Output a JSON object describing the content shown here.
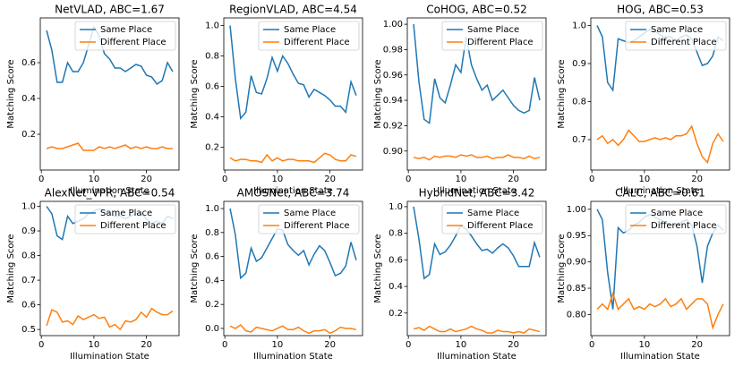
{
  "chart_data": [
    {
      "type": "line",
      "title": "NetVLAD, ABC=1.67",
      "xlabel": "Illumination State",
      "ylabel": "Matching Score",
      "x": [
        1,
        2,
        3,
        4,
        5,
        6,
        7,
        8,
        9,
        10,
        11,
        12,
        13,
        14,
        15,
        16,
        17,
        18,
        19,
        20,
        21,
        22,
        23,
        24,
        25
      ],
      "xlim": [
        -0.2,
        26.2
      ],
      "xticks": [
        0,
        10,
        20
      ],
      "ylim": [
        0,
        0.85
      ],
      "yticks": [
        0.2,
        0.4,
        0.6
      ],
      "legend": "upper right",
      "series": [
        {
          "name": "Same Place",
          "color": "#1f77b4",
          "values": [
            0.78,
            0.67,
            0.49,
            0.49,
            0.6,
            0.55,
            0.55,
            0.6,
            0.7,
            0.8,
            0.75,
            0.65,
            0.62,
            0.57,
            0.57,
            0.55,
            0.57,
            0.59,
            0.58,
            0.53,
            0.52,
            0.48,
            0.5,
            0.6,
            0.55
          ]
        },
        {
          "name": "Different Place",
          "color": "#ff7f0e",
          "values": [
            0.12,
            0.13,
            0.12,
            0.12,
            0.13,
            0.14,
            0.15,
            0.11,
            0.11,
            0.11,
            0.13,
            0.12,
            0.13,
            0.12,
            0.13,
            0.14,
            0.12,
            0.13,
            0.12,
            0.13,
            0.12,
            0.12,
            0.13,
            0.12,
            0.12
          ]
        }
      ]
    },
    {
      "type": "line",
      "title": "RegionVLAD, ABC=4.54",
      "xlabel": "Illumination State",
      "ylabel": "Matching Score",
      "x": [
        1,
        2,
        3,
        4,
        5,
        6,
        7,
        8,
        9,
        10,
        11,
        12,
        13,
        14,
        15,
        16,
        17,
        18,
        19,
        20,
        21,
        22,
        23,
        24,
        25
      ],
      "xlim": [
        -0.2,
        26.2
      ],
      "xticks": [
        0,
        10,
        20
      ],
      "ylim": [
        0.05,
        1.05
      ],
      "yticks": [
        0.2,
        0.4,
        0.6,
        0.8,
        {
          "value": 1,
          "label": "1.0"
        }
      ],
      "legend": "upper right",
      "series": [
        {
          "name": "Same Place",
          "color": "#1f77b4",
          "values": [
            1.0,
            0.65,
            0.39,
            0.43,
            0.67,
            0.56,
            0.55,
            0.65,
            0.79,
            0.7,
            0.8,
            0.75,
            0.68,
            0.62,
            0.61,
            0.53,
            0.58,
            0.56,
            0.54,
            0.51,
            0.47,
            0.47,
            0.43,
            0.63,
            0.54
          ]
        },
        {
          "name": "Different Place",
          "color": "#ff7f0e",
          "values": [
            0.13,
            0.11,
            0.12,
            0.12,
            0.11,
            0.11,
            0.1,
            0.15,
            0.11,
            0.13,
            0.11,
            0.12,
            0.12,
            0.11,
            0.11,
            0.11,
            0.1,
            0.13,
            0.16,
            0.15,
            0.12,
            0.11,
            0.11,
            0.15,
            0.14
          ]
        }
      ]
    },
    {
      "type": "line",
      "title": "CoHOG, ABC=0.52",
      "xlabel": "Illumination State",
      "ylabel": "Matching Score",
      "x": [
        1,
        2,
        3,
        4,
        5,
        6,
        7,
        8,
        9,
        10,
        11,
        12,
        13,
        14,
        15,
        16,
        17,
        18,
        19,
        20,
        21,
        22,
        23,
        24,
        25
      ],
      "xlim": [
        -0.2,
        26.2
      ],
      "xticks": [
        0,
        10,
        20
      ],
      "ylim": [
        0.885,
        1.005
      ],
      "yticks": [
        {
          "value": 0.9,
          "label": "0.90"
        },
        0.92,
        0.94,
        0.96,
        0.98,
        {
          "value": 1,
          "label": "1.00"
        }
      ],
      "legend": "upper right",
      "series": [
        {
          "name": "Same Place",
          "color": "#1f77b4",
          "values": [
            1.0,
            0.955,
            0.925,
            0.922,
            0.957,
            0.942,
            0.938,
            0.952,
            0.968,
            0.962,
            0.99,
            0.968,
            0.957,
            0.948,
            0.952,
            0.94,
            0.944,
            0.948,
            0.942,
            0.936,
            0.932,
            0.93,
            0.932,
            0.958,
            0.94
          ]
        },
        {
          "name": "Different Place",
          "color": "#ff7f0e",
          "values": [
            0.895,
            0.894,
            0.895,
            0.893,
            0.896,
            0.895,
            0.896,
            0.896,
            0.895,
            0.897,
            0.896,
            0.897,
            0.895,
            0.895,
            0.896,
            0.894,
            0.895,
            0.895,
            0.897,
            0.895,
            0.895,
            0.894,
            0.896,
            0.894,
            0.895
          ]
        }
      ]
    },
    {
      "type": "line",
      "title": "HOG, ABC=0.53",
      "xlabel": "Illumination State",
      "ylabel": "Matching Score",
      "x": [
        1,
        2,
        3,
        4,
        5,
        6,
        7,
        8,
        9,
        10,
        11,
        12,
        13,
        14,
        15,
        16,
        17,
        18,
        19,
        20,
        21,
        22,
        23,
        24,
        25
      ],
      "xlim": [
        -0.2,
        26.2
      ],
      "xticks": [
        0,
        10,
        20
      ],
      "ylim": [
        0.62,
        1.02
      ],
      "yticks": [
        0.7,
        0.8,
        0.9,
        {
          "value": 1,
          "label": "1.0"
        }
      ],
      "legend": "upper right",
      "series": [
        {
          "name": "Same Place",
          "color": "#1f77b4",
          "values": [
            1.0,
            0.97,
            0.85,
            0.83,
            0.965,
            0.96,
            0.955,
            0.96,
            0.97,
            0.98,
            0.99,
            0.985,
            0.975,
            0.97,
            0.97,
            0.96,
            0.97,
            0.975,
            0.965,
            0.93,
            0.895,
            0.9,
            0.92,
            0.97,
            0.96
          ]
        },
        {
          "name": "Different Place",
          "color": "#ff7f0e",
          "values": [
            0.7,
            0.71,
            0.69,
            0.7,
            0.685,
            0.7,
            0.725,
            0.71,
            0.695,
            0.695,
            0.7,
            0.705,
            0.7,
            0.705,
            0.7,
            0.71,
            0.71,
            0.715,
            0.735,
            0.69,
            0.655,
            0.64,
            0.69,
            0.715,
            0.695
          ]
        }
      ]
    },
    {
      "type": "line",
      "title": "AlexNet_VPR, ABC=0.54",
      "xlabel": "Illumination State",
      "ylabel": "Matching Score",
      "x": [
        1,
        2,
        3,
        4,
        5,
        6,
        7,
        8,
        9,
        10,
        11,
        12,
        13,
        14,
        15,
        16,
        17,
        18,
        19,
        20,
        21,
        22,
        23,
        24,
        25
      ],
      "xlim": [
        -0.2,
        26.2
      ],
      "xticks": [
        0,
        10,
        20
      ],
      "ylim": [
        0.475,
        1.02
      ],
      "yticks": [
        0.5,
        0.6,
        0.7,
        0.8,
        0.9,
        {
          "value": 1,
          "label": "1.0"
        }
      ],
      "legend": "upper right",
      "series": [
        {
          "name": "Same Place",
          "color": "#1f77b4",
          "values": [
            1.0,
            0.97,
            0.88,
            0.865,
            0.96,
            0.93,
            0.94,
            0.95,
            0.97,
            0.98,
            0.99,
            0.98,
            0.97,
            0.96,
            0.96,
            0.95,
            0.96,
            0.97,
            0.97,
            0.95,
            0.93,
            0.94,
            0.93,
            0.96,
            0.95
          ]
        },
        {
          "name": "Different Place",
          "color": "#ff7f0e",
          "values": [
            0.515,
            0.58,
            0.57,
            0.53,
            0.535,
            0.52,
            0.555,
            0.54,
            0.55,
            0.56,
            0.545,
            0.55,
            0.51,
            0.52,
            0.5,
            0.535,
            0.53,
            0.54,
            0.57,
            0.55,
            0.585,
            0.57,
            0.56,
            0.56,
            0.575
          ]
        }
      ]
    },
    {
      "type": "line",
      "title": "AMOSNet, ABC=3.74",
      "xlabel": "Illumination State",
      "ylabel": "Matching Score",
      "x": [
        1,
        2,
        3,
        4,
        5,
        6,
        7,
        8,
        9,
        10,
        11,
        12,
        13,
        14,
        15,
        16,
        17,
        18,
        19,
        20,
        21,
        22,
        23,
        24,
        25
      ],
      "xlim": [
        -0.2,
        26.2
      ],
      "xticks": [
        0,
        10,
        20
      ],
      "ylim": [
        -0.06,
        1.06
      ],
      "yticks": [
        {
          "value": 0,
          "label": "0.0"
        },
        0.2,
        0.4,
        0.6,
        0.8,
        {
          "value": 1,
          "label": "1.0"
        }
      ],
      "legend": "upper right",
      "series": [
        {
          "name": "Same Place",
          "color": "#1f77b4",
          "values": [
            1.0,
            0.78,
            0.42,
            0.46,
            0.67,
            0.56,
            0.59,
            0.67,
            0.75,
            0.83,
            0.82,
            0.7,
            0.65,
            0.61,
            0.65,
            0.53,
            0.62,
            0.69,
            0.65,
            0.55,
            0.44,
            0.46,
            0.52,
            0.72,
            0.57
          ]
        },
        {
          "name": "Different Place",
          "color": "#ff7f0e",
          "values": [
            0.02,
            0.0,
            0.03,
            -0.02,
            -0.03,
            0.01,
            0.0,
            -0.01,
            -0.02,
            0.0,
            0.02,
            -0.01,
            -0.01,
            0.01,
            -0.02,
            -0.04,
            -0.02,
            -0.02,
            -0.01,
            -0.04,
            -0.02,
            0.01,
            0.0,
            0.0,
            -0.01
          ]
        }
      ]
    },
    {
      "type": "line",
      "title": "HybridNet, ABC=3.42",
      "xlabel": "Illumination State",
      "ylabel": "Matching Score",
      "x": [
        1,
        2,
        3,
        4,
        5,
        6,
        7,
        8,
        9,
        10,
        11,
        12,
        13,
        14,
        15,
        16,
        17,
        18,
        19,
        20,
        21,
        22,
        23,
        24,
        25
      ],
      "xlim": [
        -0.2,
        26.2
      ],
      "xticks": [
        0,
        10,
        20
      ],
      "ylim": [
        0.03,
        1.04
      ],
      "yticks": [
        0.2,
        0.4,
        0.6,
        0.8,
        {
          "value": 1,
          "label": "1.0"
        }
      ],
      "legend": "upper right",
      "series": [
        {
          "name": "Same Place",
          "color": "#1f77b4",
          "values": [
            1.0,
            0.76,
            0.46,
            0.49,
            0.72,
            0.64,
            0.66,
            0.71,
            0.78,
            0.86,
            0.83,
            0.78,
            0.72,
            0.67,
            0.68,
            0.65,
            0.69,
            0.72,
            0.69,
            0.63,
            0.55,
            0.55,
            0.55,
            0.73,
            0.62
          ]
        },
        {
          "name": "Different Place",
          "color": "#ff7f0e",
          "values": [
            0.08,
            0.09,
            0.07,
            0.1,
            0.08,
            0.06,
            0.06,
            0.08,
            0.06,
            0.07,
            0.08,
            0.1,
            0.08,
            0.07,
            0.05,
            0.05,
            0.07,
            0.06,
            0.06,
            0.05,
            0.06,
            0.05,
            0.08,
            0.07,
            0.06
          ]
        }
      ]
    },
    {
      "type": "line",
      "title": "CALC, ABC=0.61",
      "xlabel": "Illumination State",
      "ylabel": "Matching Score",
      "x": [
        1,
        2,
        3,
        4,
        5,
        6,
        7,
        8,
        9,
        10,
        11,
        12,
        13,
        14,
        15,
        16,
        17,
        18,
        19,
        20,
        21,
        22,
        23,
        24,
        25
      ],
      "xlim": [
        -0.2,
        26.2
      ],
      "xticks": [
        0,
        10,
        20
      ],
      "ylim": [
        0.76,
        1.015
      ],
      "yticks": [
        {
          "value": 0.8,
          "label": "0.80"
        },
        0.85,
        {
          "value": 0.9,
          "label": "0.90"
        },
        0.95,
        {
          "value": 1,
          "label": "1.00"
        }
      ],
      "legend": "upper right",
      "series": [
        {
          "name": "Same Place",
          "color": "#1f77b4",
          "values": [
            1.0,
            0.98,
            0.88,
            0.81,
            0.965,
            0.955,
            0.96,
            0.97,
            0.975,
            0.985,
            0.99,
            0.985,
            0.98,
            0.975,
            0.97,
            0.97,
            0.975,
            0.98,
            0.97,
            0.93,
            0.86,
            0.93,
            0.955,
            0.97,
            0.96
          ]
        },
        {
          "name": "Different Place",
          "color": "#ff7f0e",
          "values": [
            0.81,
            0.82,
            0.81,
            0.84,
            0.81,
            0.82,
            0.83,
            0.81,
            0.815,
            0.81,
            0.82,
            0.815,
            0.82,
            0.83,
            0.815,
            0.82,
            0.83,
            0.81,
            0.82,
            0.83,
            0.83,
            0.82,
            0.775,
            0.8,
            0.82
          ]
        }
      ]
    }
  ]
}
